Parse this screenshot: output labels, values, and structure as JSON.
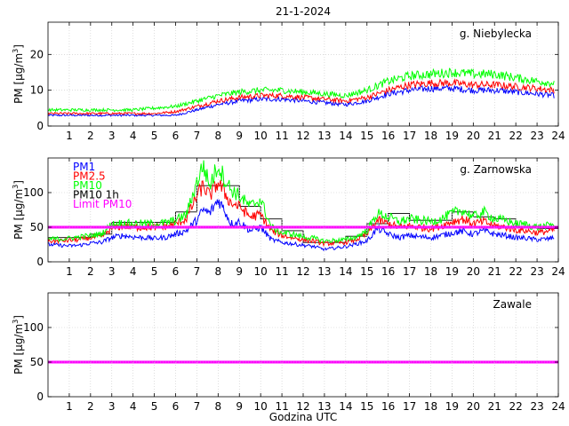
{
  "title": "21-1-2024",
  "xlabel": "Godzina UTC",
  "chart_data": [
    {
      "type": "line",
      "station": "g. Niebylecka",
      "ylabel": "PM [µg/m",
      "ylabel_sup": "3",
      "ylabel_end": "]",
      "xlim": [
        0,
        24
      ],
      "ylim": [
        0,
        29
      ],
      "yticks": [
        0,
        10,
        20
      ],
      "xticks": [
        1,
        2,
        3,
        4,
        5,
        6,
        7,
        8,
        9,
        10,
        11,
        12,
        13,
        14,
        15,
        16,
        17,
        18,
        19,
        20,
        21,
        22,
        23,
        24
      ],
      "grid": true,
      "legend": null,
      "series": [
        {
          "name": "PM1",
          "color": "#0000ff",
          "hours": [
            0,
            1,
            2,
            3,
            4,
            5,
            6,
            7,
            8,
            9,
            10,
            11,
            12,
            13,
            14,
            15,
            16,
            17,
            18,
            19,
            20,
            21,
            22,
            23,
            23.8
          ],
          "values": [
            3,
            3,
            3,
            3,
            3,
            3,
            3,
            4.5,
            6,
            7,
            7.5,
            7.5,
            7,
            6.5,
            6,
            7,
            9,
            10,
            10.5,
            10.5,
            10,
            10,
            9.5,
            9,
            8.5
          ]
        },
        {
          "name": "PM2.5",
          "color": "#ff0000",
          "hours": [
            0,
            1,
            2,
            3,
            4,
            5,
            6,
            7,
            8,
            9,
            10,
            11,
            12,
            13,
            14,
            15,
            16,
            17,
            18,
            19,
            20,
            21,
            22,
            23,
            23.8
          ],
          "values": [
            3.5,
            3.5,
            3.5,
            3.5,
            3.5,
            3.5,
            4,
            5.5,
            7,
            8,
            8.5,
            8.5,
            8,
            7.5,
            7,
            8,
            10,
            11.5,
            12,
            12,
            11.5,
            11.5,
            11,
            10.5,
            10
          ]
        },
        {
          "name": "PM10",
          "color": "#00ff00",
          "hours": [
            0,
            1,
            2,
            3,
            4,
            5,
            6,
            7,
            8,
            9,
            10,
            11,
            12,
            13,
            14,
            15,
            16,
            17,
            18,
            19,
            20,
            21,
            22,
            23,
            23.8
          ],
          "values": [
            4.5,
            4.5,
            4.5,
            4.5,
            4.5,
            5,
            5.5,
            7,
            8.5,
            9.5,
            10,
            10,
            9.5,
            9,
            8.5,
            10,
            12.5,
            14,
            14.5,
            15,
            14.5,
            14.5,
            13.5,
            12.5,
            12
          ]
        }
      ]
    },
    {
      "type": "line",
      "station": "g. Zarnowska",
      "ylabel": "PM [µg/m",
      "ylabel_sup": "3",
      "ylabel_end": "]",
      "xlim": [
        0,
        24
      ],
      "ylim": [
        0,
        150
      ],
      "yticks": [
        0,
        50,
        100
      ],
      "xticks": [
        1,
        2,
        3,
        4,
        5,
        6,
        7,
        8,
        9,
        10,
        11,
        12,
        13,
        14,
        15,
        16,
        17,
        18,
        19,
        20,
        21,
        22,
        23,
        24
      ],
      "grid": true,
      "legend": {
        "position": "top-left",
        "entries": [
          {
            "label": "PM1",
            "color": "#0000ff"
          },
          {
            "label": "PM2.5",
            "color": "#ff0000"
          },
          {
            "label": "PM10",
            "color": "#00ff00"
          },
          {
            "label": "PM10 1h",
            "color": "#000000"
          },
          {
            "label": "Limit PM10",
            "color": "#ff00ff"
          }
        ]
      },
      "limit": {
        "name": "Limit PM10",
        "value": 50,
        "color": "#ff00ff"
      },
      "hourly": {
        "name": "PM10 1h",
        "color": "#000000",
        "values": [
          35,
          35,
          40,
          57,
          57,
          57,
          72,
          110,
          110,
          80,
          62,
          45,
          28,
          28,
          37,
          55,
          70,
          60,
          60,
          72,
          65,
          62,
          50,
          48
        ]
      },
      "series": [
        {
          "name": "PM1",
          "color": "#0000ff",
          "hours": [
            0,
            0.5,
            1,
            1.5,
            2,
            2.5,
            3,
            3.5,
            4,
            4.5,
            5,
            5.5,
            6,
            6.5,
            7,
            7.3,
            7.6,
            8,
            8.3,
            8.6,
            9,
            9.5,
            10,
            10.5,
            11,
            11.5,
            12,
            12.5,
            13,
            13.5,
            14,
            14.5,
            15,
            15.5,
            16,
            16.5,
            17,
            17.5,
            18,
            18.5,
            19,
            19.5,
            20,
            20.5,
            21,
            21.5,
            22,
            22.5,
            23,
            23.5,
            23.8
          ],
          "values": [
            25,
            24,
            23,
            24,
            27,
            28,
            35,
            38,
            36,
            35,
            34,
            35,
            40,
            45,
            60,
            75,
            70,
            90,
            75,
            55,
            58,
            45,
            50,
            32,
            28,
            26,
            24,
            22,
            18,
            20,
            22,
            26,
            30,
            48,
            40,
            35,
            38,
            36,
            35,
            38,
            42,
            44,
            40,
            45,
            40,
            38,
            35,
            34,
            32,
            33,
            35
          ]
        },
        {
          "name": "PM2.5",
          "color": "#ff0000",
          "hours": [
            0,
            0.5,
            1,
            1.5,
            2,
            2.5,
            3,
            3.5,
            4,
            4.5,
            5,
            5.5,
            6,
            6.5,
            7,
            7.3,
            7.6,
            8,
            8.3,
            8.6,
            9,
            9.5,
            10,
            10.5,
            11,
            11.5,
            12,
            12.5,
            13,
            13.5,
            14,
            14.5,
            15,
            15.5,
            16,
            16.5,
            17,
            17.5,
            18,
            18.5,
            19,
            19.5,
            20,
            20.5,
            21,
            21.5,
            22,
            22.5,
            23,
            23.5,
            23.8
          ],
          "values": [
            30,
            30,
            31,
            32,
            35,
            36,
            48,
            52,
            50,
            50,
            50,
            51,
            55,
            62,
            95,
            110,
            95,
            115,
            100,
            85,
            80,
            65,
            68,
            45,
            38,
            35,
            32,
            30,
            26,
            27,
            28,
            32,
            40,
            60,
            55,
            50,
            52,
            50,
            48,
            52,
            58,
            62,
            55,
            58,
            52,
            50,
            46,
            45,
            42,
            44,
            46
          ]
        },
        {
          "name": "PM10",
          "color": "#00ff00",
          "hours": [
            0,
            0.5,
            1,
            1.5,
            2,
            2.5,
            3,
            3.5,
            4,
            4.5,
            5,
            5.5,
            6,
            6.5,
            7,
            7.3,
            7.6,
            8,
            8.3,
            8.6,
            9,
            9.5,
            10,
            10.5,
            11,
            11.5,
            12,
            12.5,
            13,
            13.5,
            14,
            14.5,
            15,
            15.5,
            16,
            16.5,
            17,
            17.5,
            18,
            18.5,
            19,
            19.5,
            20,
            20.5,
            21,
            21.5,
            22,
            22.5,
            23,
            23.5,
            23.8
          ],
          "values": [
            33,
            33,
            34,
            36,
            38,
            40,
            54,
            56,
            55,
            55,
            55,
            56,
            60,
            68,
            115,
            140,
            110,
            140,
            120,
            105,
            95,
            80,
            90,
            50,
            42,
            40,
            36,
            34,
            30,
            31,
            32,
            36,
            45,
            70,
            65,
            58,
            62,
            60,
            58,
            62,
            70,
            75,
            65,
            72,
            62,
            60,
            55,
            54,
            50,
            52,
            55
          ]
        }
      ]
    },
    {
      "type": "line",
      "station": "Zawale",
      "ylabel": "PM [µg/m",
      "ylabel_sup": "3",
      "ylabel_end": "]",
      "xlim": [
        0,
        24
      ],
      "ylim": [
        0,
        150
      ],
      "yticks": [
        0,
        50,
        100
      ],
      "xticks": [
        1,
        2,
        3,
        4,
        5,
        6,
        7,
        8,
        9,
        10,
        11,
        12,
        13,
        14,
        15,
        16,
        17,
        18,
        19,
        20,
        21,
        22,
        23,
        24
      ],
      "grid": true,
      "legend": null,
      "limit": {
        "name": "Limit PM10",
        "value": 50,
        "color": "#ff00ff"
      },
      "series": []
    }
  ]
}
